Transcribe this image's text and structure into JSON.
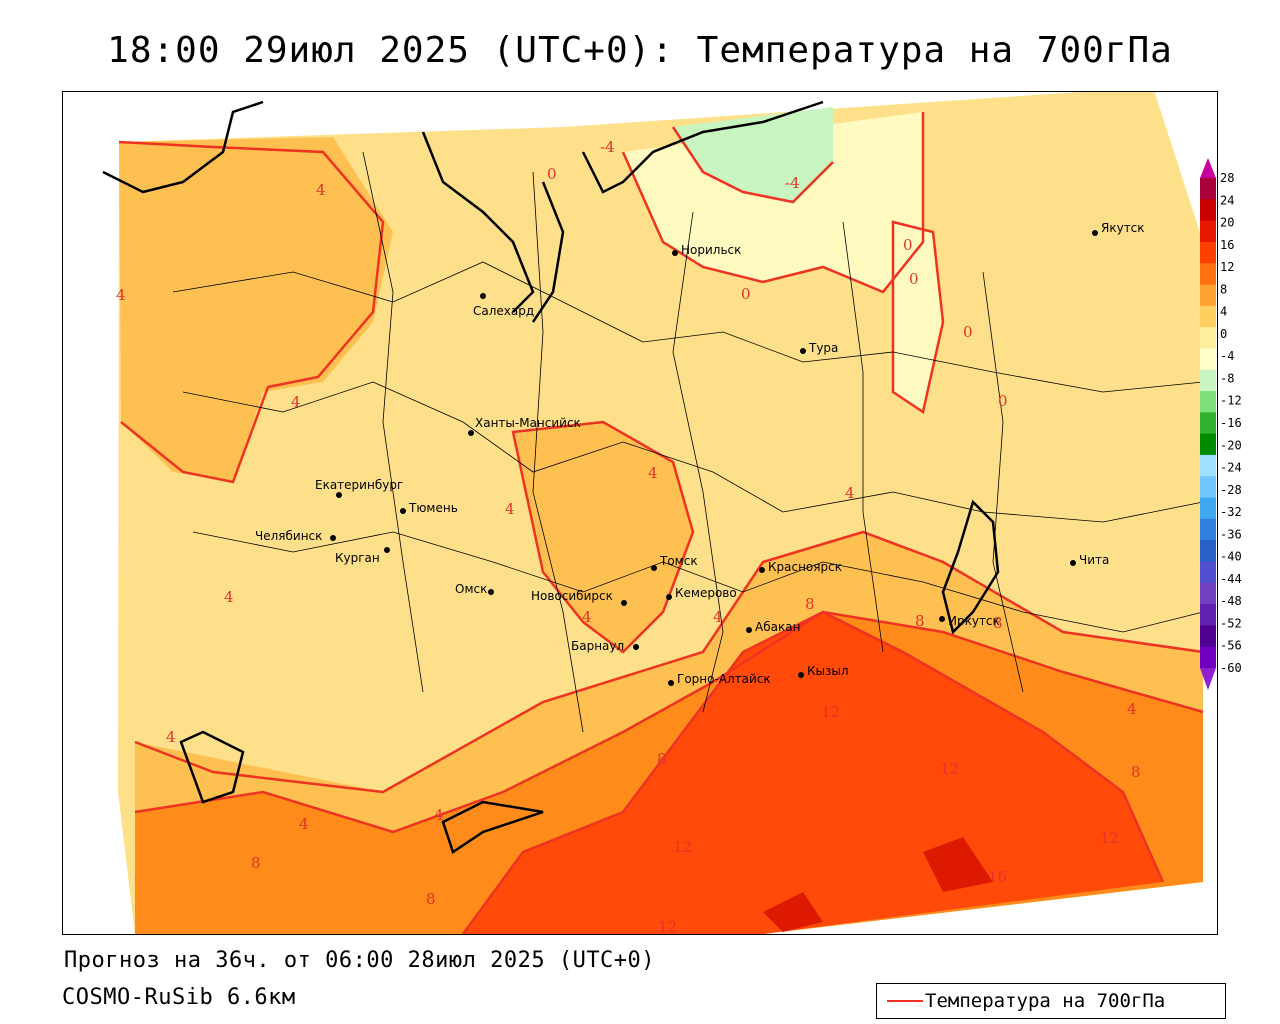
{
  "title": "18:00 29июл 2025 (UTC+0): Температура на 700гПа",
  "forecast_line": "Прогноз на 36ч. от 06:00 28июл 2025 (UTC+0)",
  "model_line": "COSMO-RuSib 6.6км",
  "legend_label": "Температура на 700гПа",
  "colors": {
    "contour": "#ee3322",
    "warm_light": "#ffe08a",
    "warm_mid": "#ffc052",
    "warm_orange": "#ff8c1a",
    "hot": "#ff4a0a",
    "hottest": "#dd1a00",
    "cool_pale": "#fffac0",
    "cool_green": "#c8f5c0"
  },
  "colorbar": {
    "ticks": [
      "28",
      "24",
      "20",
      "16",
      "12",
      "8",
      "4",
      "0",
      "-4",
      "-8",
      "-12",
      "-16",
      "-20",
      "-24",
      "-28",
      "-32",
      "-36",
      "-40",
      "-44",
      "-48",
      "-52",
      "-56",
      "-60"
    ],
    "colors": [
      "#a8003a",
      "#c80000",
      "#e81800",
      "#ff4000",
      "#ff7010",
      "#ffa030",
      "#ffd060",
      "#fff0a0",
      "#ffffc8",
      "#c8f5c0",
      "#7ee07a",
      "#30b030",
      "#008c00",
      "#a0e0ff",
      "#70c8ff",
      "#40a8f0",
      "#3080e0",
      "#2860c8",
      "#5050d0",
      "#7040c0",
      "#6020b0",
      "#500090",
      "#7000c0"
    ]
  },
  "cities": [
    "Норильск",
    "Якутск",
    "Салехард",
    "Тура",
    "Ханты-Мансийск",
    "Екатеринбург",
    "Тюмень",
    "Челябинск",
    "Курган",
    "Омск",
    "Томск",
    "Новосибирск",
    "Кемерово",
    "Красноярск",
    "Барнаул",
    "Абакан",
    "Иркутск",
    "Кызыл",
    "Горно-Алтайск",
    "Чита"
  ],
  "isotherm_labels": [
    "-4",
    "-4",
    "0",
    "0",
    "0",
    "0",
    "0",
    "0",
    "4",
    "4",
    "4",
    "4",
    "4",
    "4",
    "4",
    "4",
    "4",
    "4",
    "4",
    "4",
    "4",
    "8",
    "8",
    "8",
    "8",
    "8",
    "8",
    "8",
    "12",
    "12",
    "12",
    "12",
    "12",
    "16"
  ]
}
